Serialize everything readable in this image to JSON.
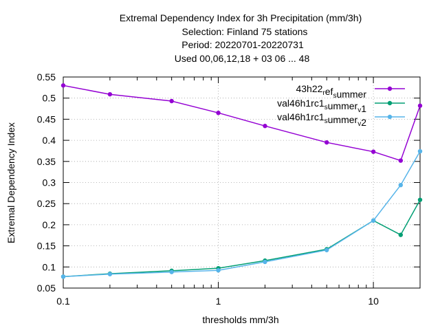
{
  "chart_data": {
    "type": "line",
    "title_lines": [
      "Extremal Dependency Index  for 3h Precipitation (mm/3h)",
      "Selection: Finland      75 stations",
      "Period: 20220701-20220731",
      "Used  00,06,12,18  + 03 06 ... 48"
    ],
    "xlabel": "thresholds mm/3h",
    "ylabel": "Extremal Dependency Index",
    "x_scale": "log",
    "xlim": [
      0.1,
      20
    ],
    "ylim": [
      0.05,
      0.55
    ],
    "x_ticks": [
      {
        "value": 0.1,
        "label": "0.1"
      },
      {
        "value": 1,
        "label": "1"
      },
      {
        "value": 10,
        "label": "10"
      }
    ],
    "y_ticks": [
      {
        "value": 0.05,
        "label": "0.05"
      },
      {
        "value": 0.1,
        "label": "0.1"
      },
      {
        "value": 0.15,
        "label": "0.15"
      },
      {
        "value": 0.2,
        "label": "0.2"
      },
      {
        "value": 0.25,
        "label": "0.25"
      },
      {
        "value": 0.3,
        "label": "0.3"
      },
      {
        "value": 0.35,
        "label": "0.35"
      },
      {
        "value": 0.4,
        "label": "0.4"
      },
      {
        "value": 0.45,
        "label": "0.45"
      },
      {
        "value": 0.5,
        "label": "0.5"
      },
      {
        "value": 0.55,
        "label": "0.55"
      }
    ],
    "grid": true,
    "legend_position": "top-right",
    "x": [
      0.1,
      0.2,
      0.5,
      1,
      2,
      5,
      10,
      15,
      20
    ],
    "series": [
      {
        "name_parts": [
          {
            "text": "43h22",
            "sub": false
          },
          {
            "text": "r",
            "sub": true
          },
          {
            "text": "ef",
            "sub": false
          },
          {
            "text": "s",
            "sub": true
          },
          {
            "text": "ummer",
            "sub": false
          }
        ],
        "color": "#9400d3",
        "values": [
          0.53,
          0.509,
          0.493,
          0.465,
          0.434,
          0.395,
          0.373,
          0.352,
          0.482
        ]
      },
      {
        "name_parts": [
          {
            "text": "val46h1rc1",
            "sub": false
          },
          {
            "text": "s",
            "sub": true
          },
          {
            "text": "ummer",
            "sub": false
          },
          {
            "text": "v",
            "sub": true
          },
          {
            "text": "1",
            "sub": false
          }
        ],
        "color": "#009e73",
        "values": [
          0.077,
          0.084,
          0.091,
          0.097,
          0.115,
          0.142,
          0.21,
          0.176,
          0.259
        ]
      },
      {
        "name_parts": [
          {
            "text": "val46h1rc1",
            "sub": false
          },
          {
            "text": "s",
            "sub": true
          },
          {
            "text": "ummer",
            "sub": false
          },
          {
            "text": "v",
            "sub": true
          },
          {
            "text": "2",
            "sub": false
          }
        ],
        "color": "#56b4e9",
        "values": [
          0.077,
          0.083,
          0.088,
          0.092,
          0.112,
          0.14,
          0.21,
          0.294,
          0.374
        ]
      }
    ]
  }
}
